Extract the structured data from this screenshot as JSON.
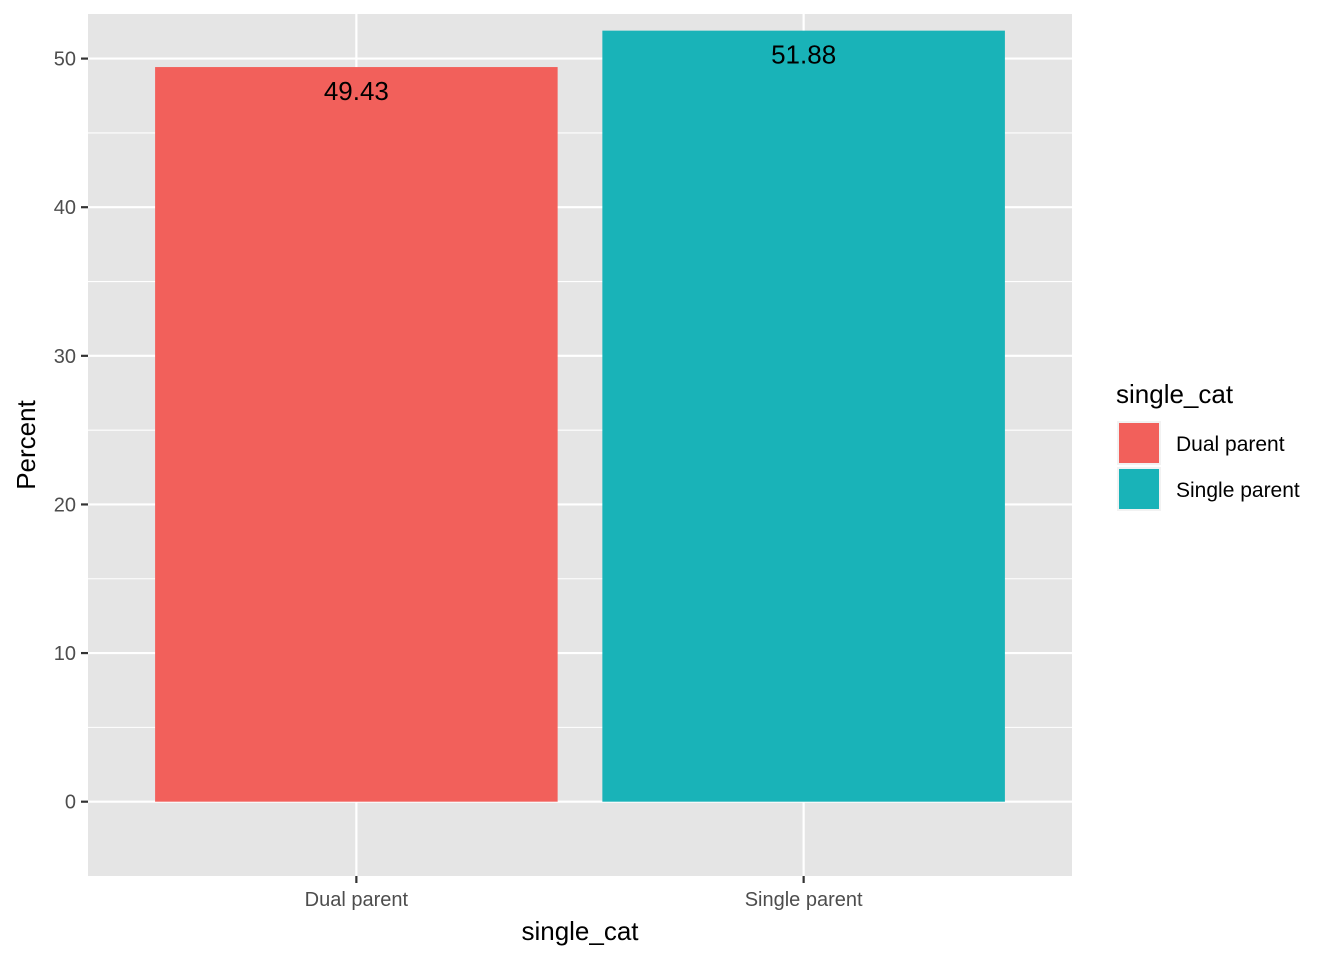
{
  "chart_data": {
    "type": "bar",
    "categories": [
      "Dual parent",
      "Single parent"
    ],
    "values": [
      49.43,
      51.88
    ],
    "data_labels": [
      "49.43",
      "51.88"
    ],
    "xlabel": "single_cat",
    "ylabel": "Percent",
    "ylim": [
      -5,
      53
    ],
    "yticks": [
      0,
      10,
      20,
      30,
      40,
      50
    ],
    "ytick_labels": [
      "0",
      "10",
      "20",
      "30",
      "40",
      "50"
    ],
    "grid": true,
    "legend": {
      "title": "single_cat",
      "position": "right",
      "entries": [
        {
          "label": "Dual parent",
          "color": "#F2605B"
        },
        {
          "label": "Single parent",
          "color": "#19B3B8"
        }
      ]
    },
    "colors": [
      "#F2605B",
      "#19B3B8"
    ],
    "panel_background": "#E5E5E5"
  }
}
